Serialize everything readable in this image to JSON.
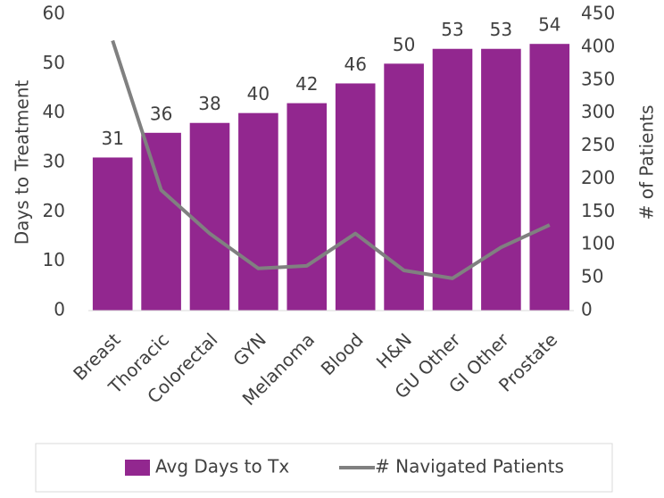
{
  "chart_data": {
    "type": "bar",
    "categories": [
      "Breast",
      "Thoracic",
      "Colorectal",
      "GYN",
      "Melanoma",
      "Blood",
      "H&N",
      "GU Other",
      "GI Other",
      "Prostate"
    ],
    "series": [
      {
        "name": "Avg Days to Tx",
        "type": "bar",
        "color": "#92278f",
        "values": [
          31,
          36,
          38,
          40,
          42,
          46,
          50,
          53,
          53,
          54
        ]
      },
      {
        "name": "# Navigated Patients",
        "type": "line",
        "axis": "y2",
        "color": "#808080",
        "values": [
          410,
          183,
          117,
          64,
          68,
          117,
          61,
          49,
          96,
          130
        ]
      }
    ],
    "ylabel": "Days to Treatment",
    "y2label": "# of Patients",
    "ylim": [
      0,
      60
    ],
    "yticks": [
      0,
      10,
      20,
      30,
      40,
      50,
      60
    ],
    "y2lim": [
      0,
      450
    ],
    "y2ticks": [
      0,
      50,
      100,
      150,
      200,
      250,
      300,
      350,
      400,
      450
    ],
    "legend": "bottom"
  }
}
